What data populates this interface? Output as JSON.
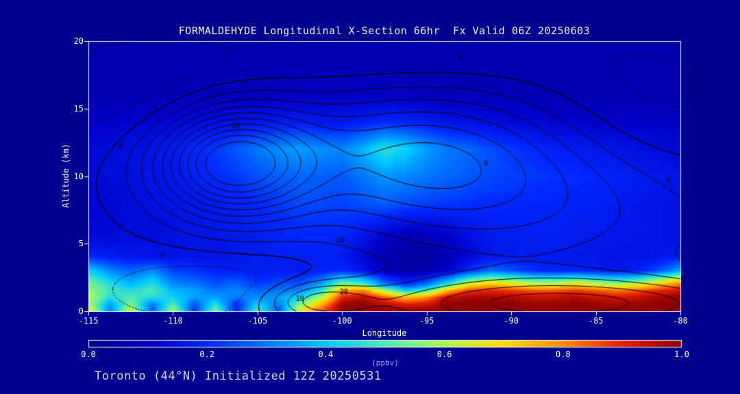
{
  "title": "FORMALDEHYDE Longitudinal X-Section 66hr  Fx Valid 06Z 20250603",
  "footer": "Toronto (44°N) Initialized 12Z 20250531",
  "colors": {
    "background": "#000090",
    "axis": "#ffffff",
    "title_text": "#f2f2ff",
    "footer_text": "#d9d9d9",
    "units_text": "#c9a0ff",
    "contour_line": "#000000"
  },
  "chart_data": {
    "type": "heatmap",
    "title": "FORMALDEHYDE Longitudinal X-Section 66hr  Fx Valid 06Z 20250603",
    "xlabel": "Longitude",
    "ylabel": "Altitude (km)",
    "xlim": [
      -115,
      -80
    ],
    "ylim": [
      0,
      20
    ],
    "xticks": [
      -115,
      -110,
      -105,
      -100,
      -95,
      -90,
      -85,
      -80
    ],
    "yticks": [
      0,
      5,
      10,
      15,
      20
    ],
    "units": "ppbv",
    "colorbar": {
      "label": "(ppbv)",
      "min": 0.0,
      "max": 1.0,
      "ticks": [
        "0.0",
        "0.2",
        "0.4",
        "0.6",
        "0.8",
        "1.0"
      ],
      "stops": [
        [
          0.0,
          "#000082"
        ],
        [
          0.1,
          "#0000c8"
        ],
        [
          0.2,
          "#0028ff"
        ],
        [
          0.3,
          "#0078ff"
        ],
        [
          0.4,
          "#00c8ff"
        ],
        [
          0.5,
          "#50ebb4"
        ],
        [
          0.6,
          "#aafa50"
        ],
        [
          0.7,
          "#ffdc00"
        ],
        [
          0.8,
          "#ff8c00"
        ],
        [
          0.9,
          "#e61e00"
        ],
        [
          1.0,
          "#8c0000"
        ]
      ]
    },
    "grid": {
      "lons": [
        -115,
        -113.75,
        -112.5,
        -111.25,
        -110,
        -108.75,
        -107.5,
        -106.25,
        -105,
        -103.75,
        -102.5,
        -101.25,
        -100,
        -98.75,
        -97.5,
        -96.25,
        -95,
        -93.75,
        -92.5,
        -91.25,
        -90,
        -88.75,
        -87.5,
        -86.25,
        -85,
        -83.75,
        -82.5,
        -81.25,
        -80
      ],
      "alts": [
        0,
        0.5,
        1,
        1.5,
        2,
        3,
        4,
        5,
        6,
        8,
        10,
        12,
        14,
        16,
        20
      ],
      "values_ppbv": [
        [
          0.7,
          0.3,
          0.65,
          0.25,
          0.6,
          0.2,
          0.55,
          0.18,
          0.5,
          0.25,
          0.65,
          0.85,
          1,
          1,
          1,
          1,
          1,
          1,
          1,
          1,
          1,
          1,
          1,
          1,
          1,
          1,
          1,
          1,
          1
        ],
        [
          0.6,
          0.35,
          0.55,
          0.3,
          0.5,
          0.25,
          0.45,
          0.2,
          0.42,
          0.3,
          0.55,
          0.75,
          0.98,
          1,
          0.95,
          0.9,
          0.92,
          1,
          1,
          1,
          1,
          0.98,
          0.98,
          1,
          0.98,
          0.97,
          0.98,
          1,
          1
        ],
        [
          0.62,
          0.45,
          0.5,
          0.45,
          0.42,
          0.35,
          0.35,
          0.3,
          0.32,
          0.35,
          0.42,
          0.6,
          0.9,
          0.95,
          0.85,
          0.75,
          0.8,
          0.95,
          0.97,
          0.97,
          0.96,
          0.94,
          0.94,
          0.96,
          0.94,
          0.92,
          0.94,
          0.97,
          1
        ],
        [
          0.58,
          0.48,
          0.45,
          0.5,
          0.38,
          0.35,
          0.3,
          0.32,
          0.28,
          0.3,
          0.32,
          0.45,
          0.78,
          0.8,
          0.6,
          0.42,
          0.5,
          0.75,
          0.88,
          0.9,
          0.88,
          0.85,
          0.85,
          0.88,
          0.85,
          0.82,
          0.85,
          0.9,
          0.93
        ],
        [
          0.55,
          0.45,
          0.38,
          0.45,
          0.32,
          0.3,
          0.25,
          0.28,
          0.22,
          0.25,
          0.25,
          0.35,
          0.55,
          0.5,
          0.3,
          0.2,
          0.28,
          0.45,
          0.65,
          0.72,
          0.68,
          0.62,
          0.62,
          0.68,
          0.62,
          0.58,
          0.62,
          0.72,
          0.82
        ],
        [
          0.42,
          0.32,
          0.27,
          0.32,
          0.23,
          0.21,
          0.18,
          0.18,
          0.17,
          0.17,
          0.17,
          0.18,
          0.2,
          0.15,
          0.08,
          0.05,
          0.06,
          0.1,
          0.2,
          0.28,
          0.25,
          0.2,
          0.18,
          0.18,
          0.17,
          0.16,
          0.18,
          0.25,
          0.35
        ],
        [
          0.2,
          0.18,
          0.16,
          0.15,
          0.15,
          0.15,
          0.15,
          0.16,
          0.17,
          0.17,
          0.18,
          0.18,
          0.17,
          0.12,
          0.07,
          0.04,
          0.05,
          0.07,
          0.12,
          0.16,
          0.17,
          0.17,
          0.17,
          0.16,
          0.16,
          0.15,
          0.15,
          0.16,
          0.18
        ],
        [
          0.14,
          0.14,
          0.14,
          0.14,
          0.14,
          0.15,
          0.15,
          0.16,
          0.17,
          0.18,
          0.19,
          0.19,
          0.18,
          0.14,
          0.09,
          0.06,
          0.06,
          0.09,
          0.13,
          0.16,
          0.17,
          0.17,
          0.17,
          0.17,
          0.16,
          0.16,
          0.15,
          0.15,
          0.14
        ],
        [
          0.12,
          0.12,
          0.13,
          0.13,
          0.14,
          0.15,
          0.16,
          0.17,
          0.18,
          0.19,
          0.2,
          0.2,
          0.2,
          0.17,
          0.13,
          0.1,
          0.1,
          0.12,
          0.15,
          0.17,
          0.17,
          0.18,
          0.18,
          0.17,
          0.17,
          0.16,
          0.16,
          0.15,
          0.14
        ],
        [
          0.11,
          0.12,
          0.13,
          0.14,
          0.15,
          0.16,
          0.17,
          0.18,
          0.2,
          0.22,
          0.24,
          0.24,
          0.23,
          0.25,
          0.27,
          0.25,
          0.23,
          0.22,
          0.21,
          0.2,
          0.2,
          0.19,
          0.19,
          0.18,
          0.18,
          0.17,
          0.16,
          0.15,
          0.14
        ],
        [
          0.12,
          0.13,
          0.14,
          0.15,
          0.16,
          0.18,
          0.2,
          0.22,
          0.25,
          0.27,
          0.28,
          0.27,
          0.26,
          0.3,
          0.34,
          0.32,
          0.3,
          0.28,
          0.26,
          0.24,
          0.23,
          0.22,
          0.21,
          0.2,
          0.19,
          0.18,
          0.17,
          0.16,
          0.15
        ],
        [
          0.12,
          0.13,
          0.14,
          0.15,
          0.17,
          0.2,
          0.22,
          0.26,
          0.3,
          0.33,
          0.35,
          0.33,
          0.32,
          0.38,
          0.46,
          0.42,
          0.35,
          0.3,
          0.28,
          0.25,
          0.22,
          0.2,
          0.18,
          0.17,
          0.16,
          0.15,
          0.14,
          0.13,
          0.12
        ],
        [
          0.1,
          0.1,
          0.11,
          0.11,
          0.12,
          0.13,
          0.14,
          0.15,
          0.16,
          0.17,
          0.17,
          0.16,
          0.16,
          0.18,
          0.2,
          0.19,
          0.17,
          0.15,
          0.14,
          0.13,
          0.12,
          0.12,
          0.11,
          0.11,
          0.1,
          0.1,
          0.1,
          0.1,
          0.1
        ],
        [
          0.07,
          0.07,
          0.07,
          0.07,
          0.07,
          0.08,
          0.08,
          0.08,
          0.08,
          0.09,
          0.09,
          0.09,
          0.09,
          0.09,
          0.09,
          0.09,
          0.08,
          0.08,
          0.08,
          0.08,
          0.08,
          0.07,
          0.07,
          0.07,
          0.07,
          0.07,
          0.07,
          0.07,
          0.07
        ],
        [
          0.06,
          0.06,
          0.06,
          0.06,
          0.06,
          0.06,
          0.06,
          0.06,
          0.06,
          0.06,
          0.06,
          0.06,
          0.06,
          0.06,
          0.06,
          0.06,
          0.06,
          0.06,
          0.06,
          0.06,
          0.06,
          0.06,
          0.06,
          0.06,
          0.06,
          0.06,
          0.06,
          0.06,
          0.06
        ]
      ]
    },
    "contour_overlay": {
      "base": -1.5,
      "levels": [
        -10,
        -5,
        0,
        5,
        10,
        15,
        20,
        25,
        30,
        35,
        40,
        45
      ],
      "negative_style": "dotted",
      "components": [
        {
          "amp": 50,
          "lon": -106.5,
          "alt": 11,
          "slon": 3.2,
          "salt": 2.8
        },
        {
          "amp": 22,
          "lon": -96,
          "alt": 11.5,
          "slon": 6,
          "salt": 3.5
        },
        {
          "amp": 14,
          "lon": -88,
          "alt": 8,
          "slon": 8,
          "salt": 4.5
        },
        {
          "amp": 26,
          "lon": -87,
          "alt": 0.5,
          "slon": 9,
          "salt": 1.4
        },
        {
          "amp": 16,
          "lon": -101.5,
          "alt": 0.8,
          "slon": 2.2,
          "salt": 1.0
        },
        {
          "amp": -9,
          "lon": -107,
          "alt": 1.5,
          "slon": 5,
          "salt": 1.8
        },
        {
          "amp": -7,
          "lon": -112,
          "alt": 16,
          "slon": 5,
          "salt": 3
        },
        {
          "amp": -7,
          "lon": -82,
          "alt": 14,
          "slon": 5,
          "salt": 4
        },
        {
          "amp": -5,
          "lon": -97,
          "alt": 19,
          "slon": 8,
          "salt": 2
        }
      ],
      "labels": [
        {
          "text": "0",
          "lon": -93.0,
          "alt": 18.7
        },
        {
          "text": "0",
          "lon": -91.5,
          "alt": 10.9
        },
        {
          "text": "0",
          "lon": -110.6,
          "alt": 4.1
        },
        {
          "text": "0",
          "lon": -80.7,
          "alt": 9.7
        },
        {
          "text": "0",
          "lon": -113.1,
          "alt": 12.2
        },
        {
          "text": "10",
          "lon": -106.3,
          "alt": 13.7
        },
        {
          "text": "10",
          "lon": -100.1,
          "alt": 5.2
        },
        {
          "text": "10",
          "lon": -102.5,
          "alt": 0.9
        },
        {
          "text": "20",
          "lon": -99.9,
          "alt": 1.4
        }
      ]
    }
  }
}
